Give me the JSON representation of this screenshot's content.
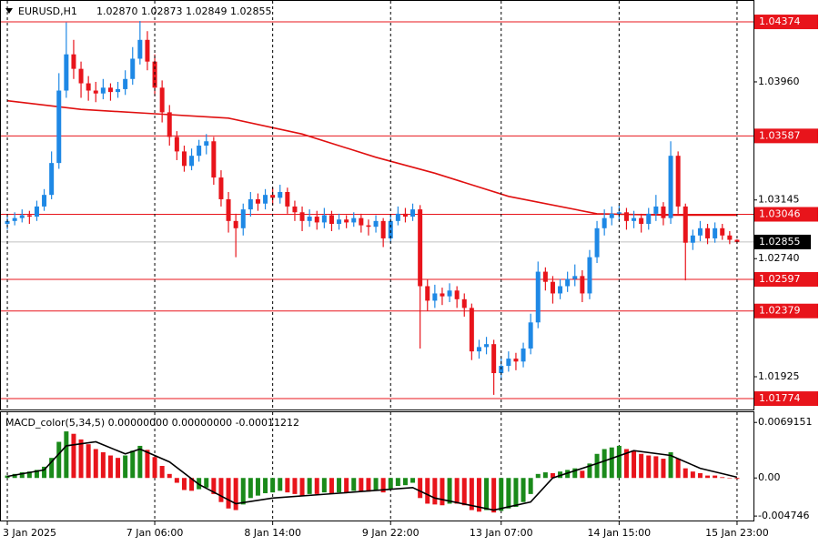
{
  "chart_data": [
    {
      "type": "candlestick",
      "symbol": "EURUSD,H1",
      "ohlc_label": "1.02870 1.02873 1.02849 1.02855",
      "up_color": "#1e88e5",
      "down_color": "#e8141b",
      "ma_color": "#e01010",
      "level_color": "#e8141b",
      "ylim": [
        1.01699,
        1.04525
      ],
      "yticks": [
        {
          "value": 1.0396,
          "label": "1.03960"
        },
        1.03145,
        {
          "value": 1.0274,
          "label": "1.02740"
        },
        1.01925
      ],
      "levels": [
        1.04374,
        1.03587,
        1.03046,
        1.02597,
        1.02379,
        1.01774
      ],
      "current_price": 1.02855,
      "ma": {
        "x": [
          0,
          10,
          20,
          30,
          40,
          50,
          58,
          68,
          80,
          90,
          99
        ],
        "values": [
          1.0383,
          1.0377,
          1.0374,
          1.0371,
          1.036,
          1.0344,
          1.0333,
          1.0317,
          1.0305,
          1.0304,
          1.0304
        ]
      },
      "candles": [
        [
          1.0298,
          1.0304,
          1.0294,
          1.03
        ],
        [
          1.03,
          1.0306,
          1.0297,
          1.0302
        ],
        [
          1.0302,
          1.0308,
          1.0299,
          1.0304
        ],
        [
          1.0304,
          1.0307,
          1.0298,
          1.0303
        ],
        [
          1.0303,
          1.0314,
          1.03,
          1.031
        ],
        [
          1.031,
          1.0322,
          1.0307,
          1.0318
        ],
        [
          1.0318,
          1.0348,
          1.0315,
          1.034
        ],
        [
          1.034,
          1.0402,
          1.0336,
          1.039
        ],
        [
          1.039,
          1.0437,
          1.0385,
          1.0415
        ],
        [
          1.0415,
          1.0425,
          1.0398,
          1.0405
        ],
        [
          1.0405,
          1.041,
          1.0385,
          1.0395
        ],
        [
          1.0395,
          1.04,
          1.0383,
          1.039
        ],
        [
          1.039,
          1.0396,
          1.0382,
          1.0388
        ],
        [
          1.0388,
          1.0398,
          1.0384,
          1.0392
        ],
        [
          1.0392,
          1.0395,
          1.0383,
          1.0389
        ],
        [
          1.0389,
          1.0396,
          1.0385,
          1.0391
        ],
        [
          1.0391,
          1.0404,
          1.0387,
          1.0398
        ],
        [
          1.0398,
          1.042,
          1.0394,
          1.0412
        ],
        [
          1.0412,
          1.0438,
          1.0408,
          1.0425
        ],
        [
          1.0425,
          1.0431,
          1.0404,
          1.041
        ],
        [
          1.041,
          1.0415,
          1.0386,
          1.0392
        ],
        [
          1.0392,
          1.0397,
          1.0368,
          1.0375
        ],
        [
          1.0375,
          1.038,
          1.0352,
          1.0358
        ],
        [
          1.0358,
          1.0362,
          1.0342,
          1.0348
        ],
        [
          1.0348,
          1.0352,
          1.0334,
          1.0338
        ],
        [
          1.0338,
          1.035,
          1.0335,
          1.0345
        ],
        [
          1.0345,
          1.0356,
          1.0341,
          1.0352
        ],
        [
          1.0352,
          1.036,
          1.0346,
          1.0355
        ],
        [
          1.0355,
          1.0358,
          1.0325,
          1.033
        ],
        [
          1.033,
          1.0335,
          1.031,
          1.0315
        ],
        [
          1.0315,
          1.032,
          1.0292,
          1.03
        ],
        [
          1.03,
          1.0305,
          1.0275,
          1.0295
        ],
        [
          1.0295,
          1.0312,
          1.029,
          1.0308
        ],
        [
          1.0308,
          1.032,
          1.0303,
          1.0315
        ],
        [
          1.0315,
          1.0319,
          1.0307,
          1.0312
        ],
        [
          1.0312,
          1.0322,
          1.0308,
          1.0318
        ],
        [
          1.0318,
          1.0323,
          1.0311,
          1.0316
        ],
        [
          1.0316,
          1.0325,
          1.0312,
          1.032
        ],
        [
          1.032,
          1.0323,
          1.0305,
          1.031
        ],
        [
          1.031,
          1.0314,
          1.03,
          1.0306
        ],
        [
          1.0306,
          1.031,
          1.0293,
          1.03
        ],
        [
          1.03,
          1.0308,
          1.0296,
          1.0303
        ],
        [
          1.0303,
          1.0307,
          1.0294,
          1.0299
        ],
        [
          1.0299,
          1.0309,
          1.0295,
          1.0304
        ],
        [
          1.0304,
          1.0307,
          1.0293,
          1.0298
        ],
        [
          1.0298,
          1.0305,
          1.0294,
          1.0301
        ],
        [
          1.0301,
          1.0304,
          1.0295,
          1.0299
        ],
        [
          1.0299,
          1.0306,
          1.0296,
          1.0302
        ],
        [
          1.0302,
          1.0305,
          1.0292,
          1.0297
        ],
        [
          1.0297,
          1.0301,
          1.029,
          1.0296
        ],
        [
          1.0296,
          1.0304,
          1.0292,
          1.03
        ],
        [
          1.03,
          1.0302,
          1.0282,
          1.0288
        ],
        [
          1.0288,
          1.0304,
          1.0285,
          1.03
        ],
        [
          1.03,
          1.031,
          1.0297,
          1.0305
        ],
        [
          1.0305,
          1.0309,
          1.0299,
          1.0303
        ],
        [
          1.0303,
          1.0312,
          1.03,
          1.0308
        ],
        [
          1.0308,
          1.0311,
          1.0212,
          1.0255
        ],
        [
          1.0255,
          1.026,
          1.0238,
          1.0245
        ],
        [
          1.0245,
          1.0256,
          1.024,
          1.025
        ],
        [
          1.025,
          1.0254,
          1.0242,
          1.0248
        ],
        [
          1.0248,
          1.0257,
          1.0244,
          1.0252
        ],
        [
          1.0252,
          1.0255,
          1.024,
          1.0246
        ],
        [
          1.0246,
          1.025,
          1.0234,
          1.024
        ],
        [
          1.024,
          1.0243,
          1.0204,
          1.021
        ],
        [
          1.021,
          1.0218,
          1.0205,
          1.0213
        ],
        [
          1.0213,
          1.022,
          1.0208,
          1.0215
        ],
        [
          1.0215,
          1.0218,
          1.018,
          1.0195
        ],
        [
          1.0195,
          1.0206,
          1.019,
          1.02
        ],
        [
          1.02,
          1.021,
          1.0196,
          1.0205
        ],
        [
          1.0205,
          1.0209,
          1.0197,
          1.0203
        ],
        [
          1.0203,
          1.0216,
          1.0199,
          1.0212
        ],
        [
          1.0212,
          1.0236,
          1.0208,
          1.023
        ],
        [
          1.023,
          1.0272,
          1.0226,
          1.0265
        ],
        [
          1.0265,
          1.0268,
          1.0252,
          1.0258
        ],
        [
          1.0258,
          1.0262,
          1.0243,
          1.025
        ],
        [
          1.025,
          1.026,
          1.0246,
          1.0255
        ],
        [
          1.0255,
          1.0265,
          1.0251,
          1.026
        ],
        [
          1.026,
          1.027,
          1.0255,
          1.0262
        ],
        [
          1.0262,
          1.0266,
          1.0244,
          1.025
        ],
        [
          1.025,
          1.028,
          1.0246,
          1.0275
        ],
        [
          1.0275,
          1.03,
          1.0271,
          1.0295
        ],
        [
          1.0295,
          1.0308,
          1.029,
          1.0302
        ],
        [
          1.0302,
          1.031,
          1.0297,
          1.0305
        ],
        [
          1.0305,
          1.0311,
          1.03,
          1.0306
        ],
        [
          1.0306,
          1.0309,
          1.0294,
          1.03
        ],
        [
          1.03,
          1.0307,
          1.0295,
          1.0302
        ],
        [
          1.0302,
          1.0305,
          1.0292,
          1.0298
        ],
        [
          1.0298,
          1.0309,
          1.0294,
          1.0305
        ],
        [
          1.0305,
          1.0318,
          1.03,
          1.031
        ],
        [
          1.031,
          1.0313,
          1.0297,
          1.0302
        ],
        [
          1.0302,
          1.0355,
          1.0298,
          1.0345
        ],
        [
          1.0345,
          1.0348,
          1.0305,
          1.031
        ],
        [
          1.031,
          1.0312,
          1.0259,
          1.0285
        ],
        [
          1.0285,
          1.0294,
          1.028,
          1.029
        ],
        [
          1.029,
          1.03,
          1.0286,
          1.0295
        ],
        [
          1.0295,
          1.0298,
          1.0284,
          1.0288
        ],
        [
          1.0288,
          1.0299,
          1.0285,
          1.0295
        ],
        [
          1.0295,
          1.0298,
          1.0287,
          1.029
        ],
        [
          1.029,
          1.0293,
          1.0284,
          1.0287
        ],
        [
          1.0287,
          1.02873,
          1.02849,
          1.02855
        ]
      ]
    },
    {
      "type": "macd",
      "label": "MACD_color(5,34,5) 0.00000000 0.00000000 -0.00011212",
      "up_color": "#1a8a1a",
      "down_color": "#e8141b",
      "signal_color": "#000000",
      "ylim": [
        -0.0053,
        0.0083
      ],
      "yticks": [
        0.0069151,
        {
          "value": 0,
          "label": "0.00"
        },
        {
          "value": -0.004746,
          "label": "-0.004746"
        }
      ],
      "xticks": [
        {
          "value": 0,
          "label": "3 Jan 2025"
        },
        {
          "value": 20,
          "label": "7 Jan 06:00"
        },
        {
          "value": 36,
          "label": "8 Jan 14:00"
        },
        {
          "value": 52,
          "label": "9 Jan 22:00"
        },
        {
          "value": 67,
          "label": "13 Jan 07:00"
        },
        {
          "value": 83,
          "label": "14 Jan 15:00"
        },
        {
          "value": 99,
          "label": "15 Jan 23:00"
        }
      ],
      "values": [
        0.0003,
        0.0005,
        0.0007,
        0.0008,
        0.001,
        0.0014,
        0.0025,
        0.0045,
        0.0058,
        0.0055,
        0.0048,
        0.0042,
        0.0036,
        0.0032,
        0.0028,
        0.0025,
        0.0028,
        0.0034,
        0.004,
        0.0035,
        0.0026,
        0.0015,
        0.0005,
        -0.0006,
        -0.0015,
        -0.0016,
        -0.0014,
        -0.0012,
        -0.002,
        -0.003,
        -0.0038,
        -0.004,
        -0.0033,
        -0.0025,
        -0.0022,
        -0.0019,
        -0.0018,
        -0.0016,
        -0.0018,
        -0.002,
        -0.0022,
        -0.002,
        -0.002,
        -0.0018,
        -0.0019,
        -0.0018,
        -0.0018,
        -0.0016,
        -0.0017,
        -0.0017,
        -0.0015,
        -0.0018,
        -0.0014,
        -0.001,
        -0.0009,
        -0.0006,
        -0.0025,
        -0.0032,
        -0.0033,
        -0.0034,
        -0.0032,
        -0.0032,
        -0.0034,
        -0.004,
        -0.0042,
        -0.004,
        -0.0043,
        -0.0041,
        -0.0038,
        -0.0036,
        -0.003,
        -0.002,
        0.0005,
        0.0007,
        0.0006,
        0.0008,
        0.001,
        0.0012,
        0.0009,
        0.0018,
        0.003,
        0.0036,
        0.0038,
        0.004,
        0.0036,
        0.0034,
        0.003,
        0.0028,
        0.0027,
        0.0024,
        0.0032,
        0.0024,
        0.0012,
        0.0008,
        0.0006,
        0.0003,
        0.0003,
        0.0001,
        0,
        -0.00011212
      ],
      "signal": {
        "x": [
          0,
          5,
          8,
          12,
          16,
          18,
          22,
          26,
          31,
          36,
          45,
          55,
          58,
          66,
          71,
          74,
          80,
          85,
          90,
          94,
          99
        ],
        "values": [
          0.0002,
          0.001,
          0.004,
          0.0045,
          0.003,
          0.0036,
          0.002,
          -0.0008,
          -0.0032,
          -0.0025,
          -0.0019,
          -0.0012,
          -0.0025,
          -0.004,
          -0.003,
          0,
          0.0018,
          0.0034,
          0.0028,
          0.0012,
          0.0001
        ]
      }
    }
  ]
}
